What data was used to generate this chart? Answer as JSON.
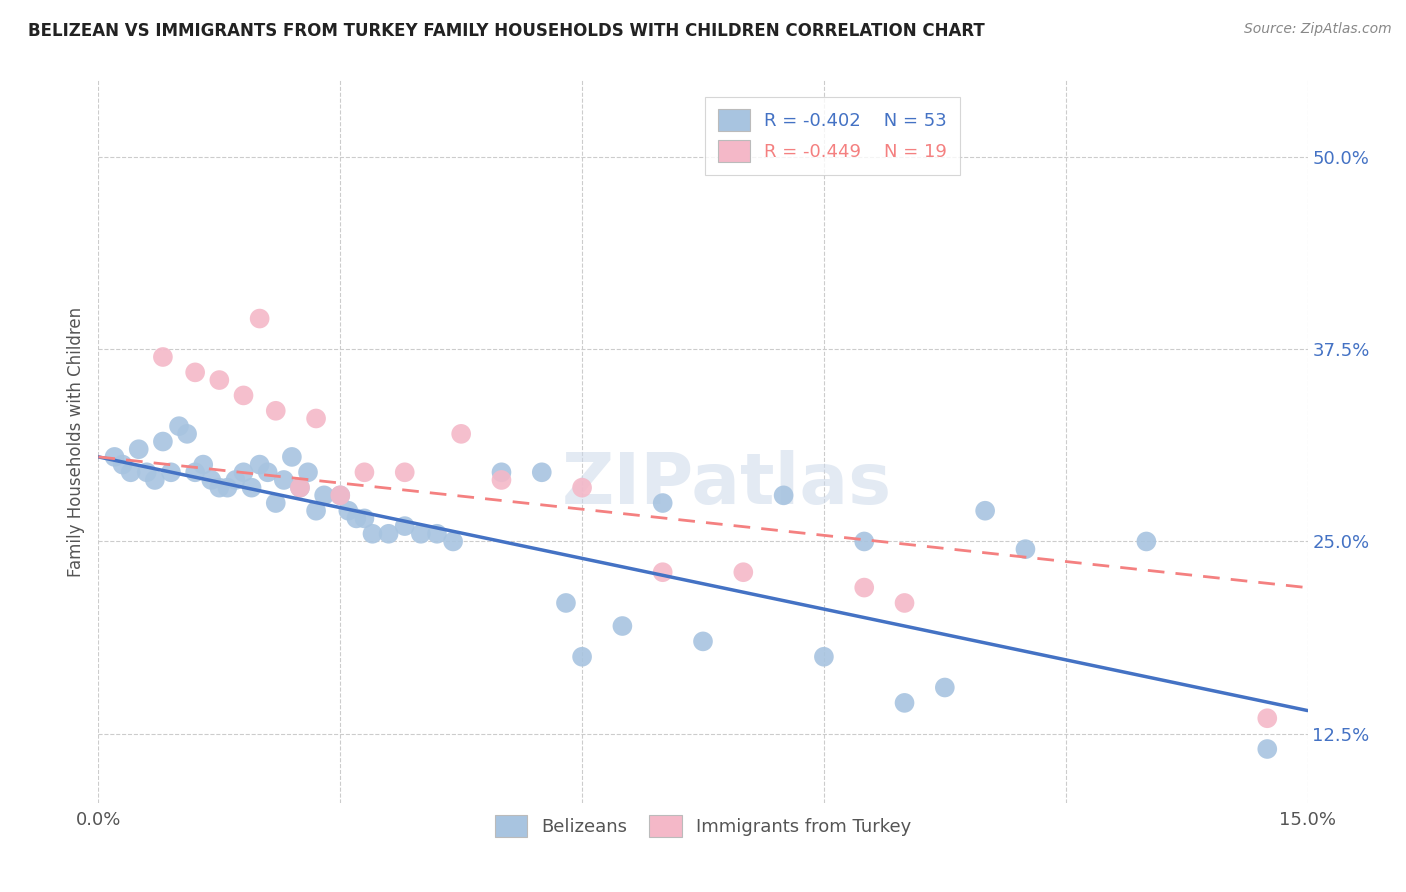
{
  "title": "BELIZEAN VS IMMIGRANTS FROM TURKEY FAMILY HOUSEHOLDS WITH CHILDREN CORRELATION CHART",
  "source": "Source: ZipAtlas.com",
  "ylabel": "Family Households with Children",
  "xlim": [
    0.0,
    0.15
  ],
  "ylim": [
    0.08,
    0.55
  ],
  "yticks_right": [
    0.125,
    0.25,
    0.375,
    0.5
  ],
  "ytick_right_labels": [
    "12.5%",
    "25.0%",
    "37.5%",
    "50.0%"
  ],
  "grid_color": "#cccccc",
  "background_color": "#ffffff",
  "belizean_color": "#a8c4e0",
  "turkey_color": "#f4b8c8",
  "belizean_line_color": "#4472c4",
  "turkey_line_color": "#f48080",
  "legend_R1": "R = -0.402",
  "legend_N1": "N = 53",
  "legend_R2": "R = -0.449",
  "legend_N2": "N = 19",
  "legend_labels": [
    "Belizeans",
    "Immigrants from Turkey"
  ],
  "watermark": "ZIPatlas",
  "belizean_x": [
    0.002,
    0.003,
    0.004,
    0.005,
    0.006,
    0.007,
    0.008,
    0.009,
    0.01,
    0.011,
    0.012,
    0.013,
    0.014,
    0.015,
    0.016,
    0.017,
    0.018,
    0.019,
    0.02,
    0.021,
    0.022,
    0.023,
    0.024,
    0.025,
    0.026,
    0.027,
    0.028,
    0.03,
    0.031,
    0.032,
    0.033,
    0.034,
    0.036,
    0.038,
    0.04,
    0.042,
    0.044,
    0.05,
    0.055,
    0.058,
    0.06,
    0.065,
    0.07,
    0.075,
    0.085,
    0.09,
    0.095,
    0.1,
    0.105,
    0.11,
    0.115,
    0.13,
    0.145
  ],
  "belizean_y": [
    0.305,
    0.3,
    0.295,
    0.31,
    0.295,
    0.29,
    0.315,
    0.295,
    0.325,
    0.32,
    0.295,
    0.3,
    0.29,
    0.285,
    0.285,
    0.29,
    0.295,
    0.285,
    0.3,
    0.295,
    0.275,
    0.29,
    0.305,
    0.285,
    0.295,
    0.27,
    0.28,
    0.28,
    0.27,
    0.265,
    0.265,
    0.255,
    0.255,
    0.26,
    0.255,
    0.255,
    0.25,
    0.295,
    0.295,
    0.21,
    0.175,
    0.195,
    0.275,
    0.185,
    0.28,
    0.175,
    0.25,
    0.145,
    0.155,
    0.27,
    0.245,
    0.25,
    0.115
  ],
  "turkey_x": [
    0.008,
    0.012,
    0.015,
    0.018,
    0.02,
    0.022,
    0.025,
    0.027,
    0.03,
    0.033,
    0.038,
    0.045,
    0.05,
    0.06,
    0.07,
    0.08,
    0.095,
    0.1,
    0.145
  ],
  "turkey_y": [
    0.37,
    0.36,
    0.355,
    0.345,
    0.395,
    0.335,
    0.285,
    0.33,
    0.28,
    0.295,
    0.295,
    0.32,
    0.29,
    0.285,
    0.23,
    0.23,
    0.22,
    0.21,
    0.135
  ]
}
